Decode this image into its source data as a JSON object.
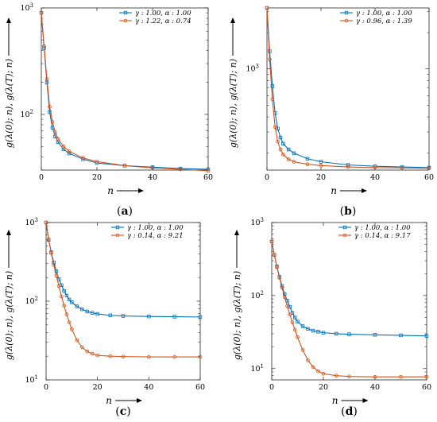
{
  "chart_data": [
    {
      "type": "line",
      "panel_label": "a",
      "ylabel": "g(λ(0); n), g(λ(T); n)",
      "xlabel": "n",
      "yscale": "log",
      "xlim": [
        0,
        60
      ],
      "ylim": [
        30,
        1000
      ],
      "xticks": [
        0,
        20,
        40,
        60
      ],
      "yticks": [
        {
          "value": 100,
          "base": "10",
          "exp": "2"
        },
        {
          "value": 1000,
          "base": "10",
          "exp": "3"
        }
      ],
      "legend_position": "top-right",
      "series": [
        {
          "name": "γ : 1.00,  α : 1.00",
          "color": "#0072BD",
          "marker": "square",
          "x": [
            0,
            1,
            2,
            3,
            4,
            5,
            6,
            8,
            10,
            15,
            20,
            30,
            40,
            50,
            60
          ],
          "y": [
            900,
            420,
            200,
            105,
            75,
            62,
            55,
            47,
            43,
            38,
            35,
            33,
            32,
            31,
            30.5
          ]
        },
        {
          "name": "γ : 1.22,  α : 0.74",
          "color": "#D95319",
          "marker": "circle",
          "x": [
            0,
            1,
            2,
            3,
            4,
            5,
            6,
            8,
            10,
            15,
            20,
            30,
            40,
            50,
            60
          ],
          "y": [
            900,
            440,
            215,
            118,
            85,
            68,
            59,
            50,
            45,
            39,
            36,
            33,
            31.5,
            30.5,
            29.5
          ]
        }
      ]
    },
    {
      "type": "line",
      "panel_label": "b",
      "ylabel": "g(λ(0); n), g(λ(T); n)",
      "xlabel": "n",
      "yscale": "log",
      "xlim": [
        0,
        60
      ],
      "ylim": [
        145,
        3200
      ],
      "xticks": [
        0,
        20,
        40,
        60
      ],
      "yticks": [
        {
          "value": 1000,
          "base": "10",
          "exp": "3"
        }
      ],
      "legend_position": "top-right",
      "series": [
        {
          "name": "γ : 1.00,  α : 1.00",
          "color": "#0072BD",
          "marker": "square",
          "x": [
            0,
            1,
            2,
            3,
            4,
            5,
            6,
            8,
            10,
            15,
            20,
            30,
            40,
            50,
            60
          ],
          "y": [
            3200,
            1400,
            720,
            430,
            320,
            270,
            240,
            215,
            200,
            180,
            170,
            160,
            156,
            154,
            152
          ]
        },
        {
          "name": "γ : 0.96,  α : 1.39",
          "color": "#D95319",
          "marker": "circle",
          "x": [
            0,
            1,
            2,
            3,
            4,
            5,
            6,
            8,
            10,
            15,
            20,
            30,
            40,
            50,
            60
          ],
          "y": [
            3200,
            1200,
            560,
            330,
            250,
            215,
            195,
            178,
            170,
            162,
            158,
            154,
            152,
            151,
            150
          ]
        }
      ]
    },
    {
      "type": "line",
      "panel_label": "c",
      "ylabel": "g(λ(0); n), g(λ(T); n)",
      "xlabel": "n",
      "yscale": "log",
      "xlim": [
        0,
        60
      ],
      "ylim": [
        10,
        1000
      ],
      "xticks": [
        0,
        20,
        40,
        60
      ],
      "yticks": [
        {
          "value": 10,
          "base": "10",
          "exp": "1"
        },
        {
          "value": 100,
          "base": "10",
          "exp": "2"
        },
        {
          "value": 1000,
          "base": "10",
          "exp": "3"
        }
      ],
      "legend_position": "top-right",
      "series": [
        {
          "name": "γ : 1.00,  α : 1.00",
          "color": "#0072BD",
          "marker": "square",
          "x": [
            0,
            1,
            2,
            3,
            4,
            5,
            6,
            7,
            8,
            9,
            10,
            12,
            14,
            16,
            18,
            20,
            25,
            30,
            40,
            50,
            60
          ],
          "y": [
            1000,
            600,
            420,
            310,
            240,
            190,
            160,
            135,
            118,
            105,
            97,
            86,
            79,
            74,
            71,
            69,
            66,
            65,
            64,
            63.5,
            63
          ]
        },
        {
          "name": "γ : 0.14,  α : 9.21",
          "color": "#D95319",
          "marker": "circle",
          "x": [
            0,
            1,
            2,
            3,
            4,
            5,
            6,
            7,
            8,
            9,
            10,
            12,
            14,
            16,
            18,
            20,
            25,
            30,
            40,
            50,
            60
          ],
          "y": [
            1000,
            610,
            410,
            290,
            210,
            155,
            115,
            88,
            68,
            54,
            44,
            32,
            26,
            23,
            21.5,
            20.5,
            20,
            19.8,
            19.6,
            19.6,
            19.6
          ]
        }
      ]
    },
    {
      "type": "line",
      "panel_label": "d",
      "ylabel": "g(λ(0); n), g(λ(T); n)",
      "xlabel": "n",
      "yscale": "log",
      "xlim": [
        0,
        60
      ],
      "ylim": [
        7,
        1000
      ],
      "xticks": [
        0,
        20,
        40,
        60
      ],
      "yticks": [
        {
          "value": 10,
          "base": "10",
          "exp": "1"
        },
        {
          "value": 100,
          "base": "10",
          "exp": "2"
        },
        {
          "value": 1000,
          "base": "10",
          "exp": "3"
        }
      ],
      "legend_position": "top-right",
      "series": [
        {
          "name": "γ : 1.00,  α : 1.00",
          "color": "#0072BD",
          "marker": "square",
          "x": [
            0,
            1,
            2,
            3,
            4,
            5,
            6,
            7,
            8,
            9,
            10,
            12,
            14,
            16,
            18,
            20,
            25,
            30,
            40,
            50,
            60
          ],
          "y": [
            550,
            360,
            250,
            180,
            135,
            105,
            85,
            70,
            58,
            50,
            44,
            38,
            35,
            33,
            32,
            31,
            30,
            29.5,
            29,
            28.5,
            28
          ]
        },
        {
          "name": "γ : 0.14,  α : 9.17",
          "color": "#D95319",
          "marker": "circle",
          "x": [
            0,
            1,
            2,
            3,
            4,
            5,
            6,
            7,
            8,
            9,
            10,
            12,
            14,
            16,
            18,
            20,
            25,
            30,
            40,
            50,
            60
          ],
          "y": [
            550,
            360,
            245,
            175,
            128,
            95,
            72,
            55,
            43,
            34,
            27,
            18,
            13,
            10.5,
            9.2,
            8.5,
            8,
            7.8,
            7.7,
            7.7,
            7.7
          ]
        }
      ]
    }
  ]
}
